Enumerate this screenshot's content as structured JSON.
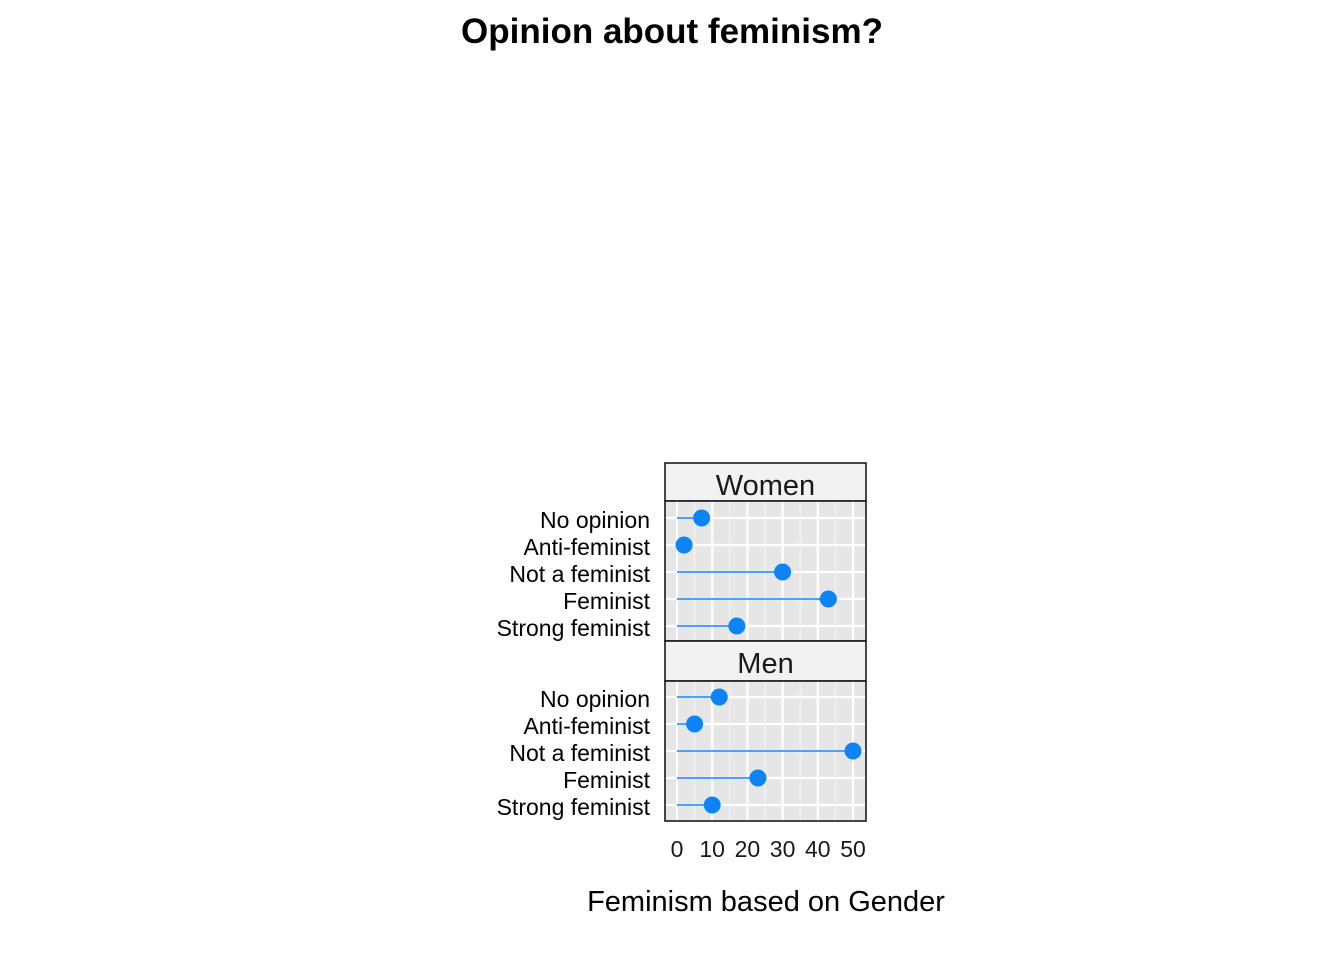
{
  "chart_data": {
    "type": "lollipop",
    "title": "Opinion about feminism?",
    "xlabel": "Feminism based on Gender",
    "ylabel": "",
    "xlim": [
      0,
      50
    ],
    "x_ticks": [
      "0",
      "10",
      "20",
      "30",
      "40",
      "50"
    ],
    "categories": [
      "No opinion",
      "Anti-feminist",
      "Not a feminist",
      "Feminist",
      "Strong feminist"
    ],
    "panels": [
      {
        "name": "Women",
        "values": [
          7,
          2,
          30,
          43,
          17
        ]
      },
      {
        "name": "Men",
        "values": [
          12,
          5,
          50,
          23,
          10
        ]
      }
    ],
    "grid": true,
    "colors": {
      "point": "#0c84f8",
      "panel_bg": "#e6e6e6",
      "strip_bg": "#f2f2f2"
    }
  }
}
